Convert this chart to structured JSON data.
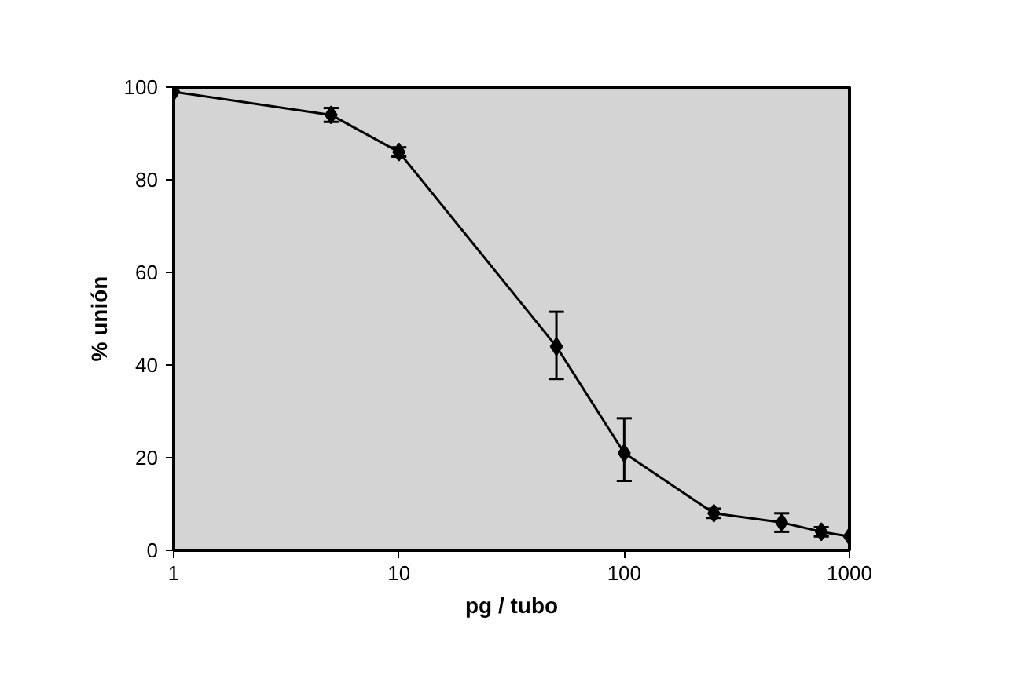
{
  "chart_data": {
    "type": "line",
    "xlabel": "pg / tubo",
    "ylabel": "% unión",
    "log": "x",
    "x": [
      1,
      5,
      10,
      50,
      100,
      250,
      500,
      750,
      1000
    ],
    "series": [
      {
        "color": "#000000",
        "values": [
          99,
          94,
          86,
          44,
          21,
          8,
          6,
          4,
          3
        ],
        "errors": [
          null,
          1.5,
          1,
          [
            37,
            51.5
          ],
          [
            15,
            28.5
          ],
          1,
          2,
          1,
          null
        ]
      }
    ],
    "xlim": [
      1,
      1000
    ],
    "xticks": [
      1,
      10,
      100,
      1000
    ],
    "ylim": [
      0,
      100
    ],
    "yticks": [
      0,
      20,
      40,
      60,
      80,
      100
    ],
    "grid": false,
    "marker": "diamond",
    "line_style": "solid"
  }
}
